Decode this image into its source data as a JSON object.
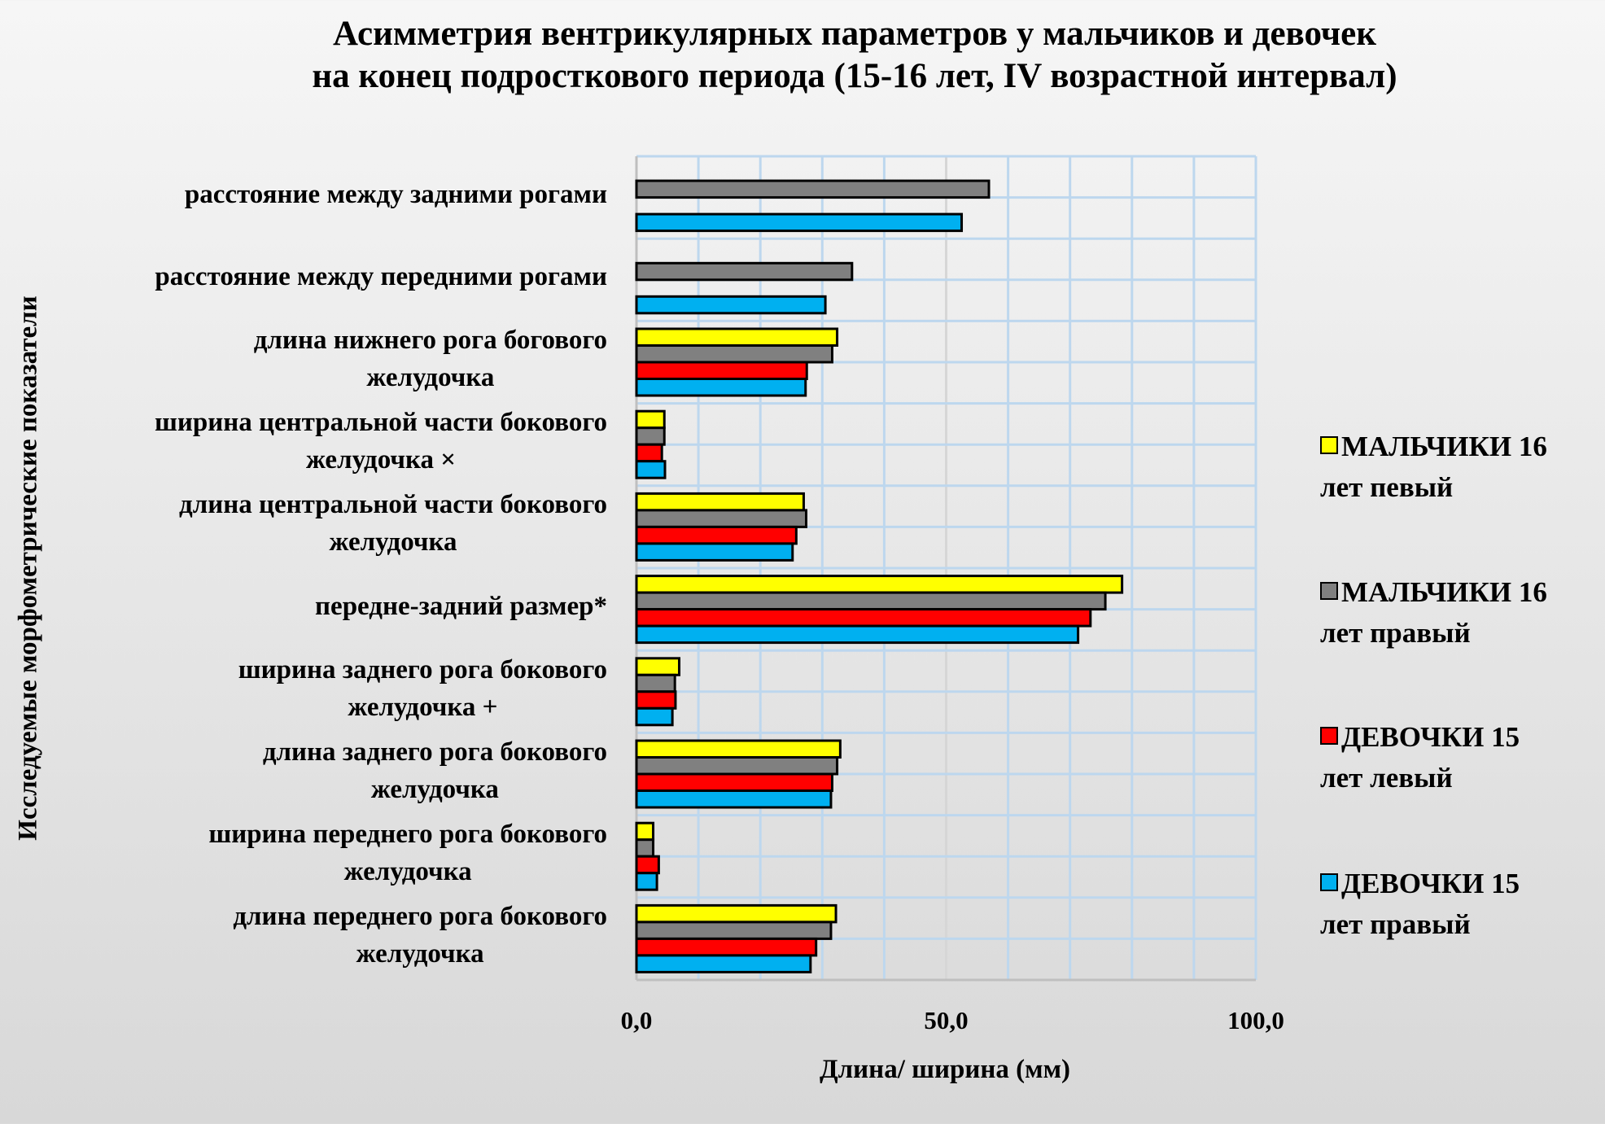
{
  "chart_data": {
    "type": "bar",
    "orientation": "horizontal",
    "title": [
      "Асимметрия вентрикулярных параметров у мальчиков и девочек",
      "на конец подросткового периода (15-16 лет, IV возрастной интервал)"
    ],
    "xlabel": "Длина/ ширина (мм)",
    "ylabel": "Исследуемые морфометрические показатели",
    "xlim": [
      0,
      100
    ],
    "xticks": [
      "0,0",
      "50,0",
      "100,0"
    ],
    "xtick_values": [
      0,
      50,
      100
    ],
    "grid": true,
    "grid_step": 10,
    "legend_position": "right",
    "categories": [
      [
        "расстояние между задними рогами"
      ],
      [
        "расстояние между передними рогами"
      ],
      [
        "длина нижнего рога богового",
        "желудочка"
      ],
      [
        "ширина центральной части бокового",
        "желудочка ×"
      ],
      [
        "длина центральной части бокового",
        "желудочка"
      ],
      [
        "передне-задний размер*"
      ],
      [
        "ширина заднего рога бокового",
        "желудочка +"
      ],
      [
        "длина заднего рога бокового",
        "желудочка"
      ],
      [
        "ширина переднего рога бокового",
        "желудочка"
      ],
      [
        "длина переднего рога бокового",
        "желудочка"
      ]
    ],
    "series": [
      {
        "name": [
          "МАЛЬЧИКИ 16",
          "лет  певый"
        ],
        "color": "#ffff00",
        "values": [
          0,
          0,
          32.4,
          4.5,
          27.0,
          78.4,
          6.9,
          32.9,
          2.7,
          32.2
        ]
      },
      {
        "name": [
          "МАЛЬЧИКИ 16",
          "лет  правый"
        ],
        "color": "#808080",
        "values": [
          56.9,
          34.8,
          31.6,
          4.5,
          27.4,
          75.7,
          6.2,
          32.4,
          2.7,
          31.4
        ]
      },
      {
        "name": [
          "ДЕВОЧКИ 15",
          "лет  левый"
        ],
        "color": "#ff0000",
        "values": [
          0,
          0,
          27.5,
          4.1,
          25.8,
          73.3,
          6.3,
          31.6,
          3.6,
          29.0
        ]
      },
      {
        "name": [
          "ДЕВОЧКИ 15",
          "лет  правый"
        ],
        "color": "#00b0f0",
        "values": [
          52.5,
          30.5,
          27.3,
          4.6,
          25.2,
          71.3,
          5.8,
          31.4,
          3.3,
          28.1
        ]
      }
    ]
  }
}
